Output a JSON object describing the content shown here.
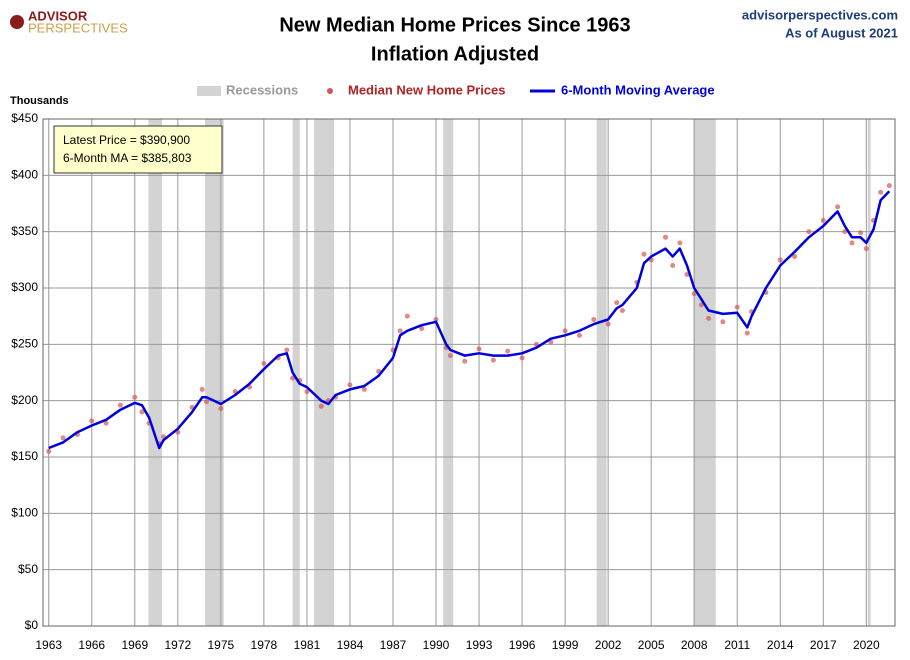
{
  "brand": {
    "line1": "ADVISOR",
    "line2": "PERSPECTIVES",
    "site": "advisorperspectives.com",
    "date": "As of August 2021"
  },
  "chart_data": {
    "type": "scatter-line",
    "title": "New Median Home Prices Since 1963",
    "subtitle": "Inflation Adjusted",
    "y_label": "Thousands",
    "annotations": [
      "Latest Price = $390,900",
      "6-Month MA = $385,803"
    ],
    "recession_name": "Recessions",
    "recession_color": "#d3d3d3",
    "recessions": [
      [
        1969.95,
        1970.9
      ],
      [
        1973.9,
        1975.2
      ],
      [
        1980.0,
        1980.5
      ],
      [
        1981.5,
        1982.9
      ],
      [
        1990.5,
        1991.2
      ],
      [
        2001.2,
        2001.9
      ],
      [
        2007.95,
        2009.5
      ],
      [
        2020.1,
        2020.3
      ]
    ],
    "x": [
      1963,
      1964,
      1965,
      1966,
      1967,
      1968,
      1969,
      1969.5,
      1970,
      1970.7,
      1971,
      1972,
      1973,
      1973.7,
      1974,
      1975,
      1976,
      1977,
      1978,
      1979,
      1979.6,
      1980,
      1980.5,
      1981,
      1982,
      1982.5,
      1983,
      1984,
      1985,
      1986,
      1987,
      1987.5,
      1988,
      1989,
      1990,
      1990.7,
      1991,
      1992,
      1993,
      1994,
      1995,
      1996,
      1997,
      1998,
      1999,
      2000,
      2001,
      2002,
      2002.6,
      2003,
      2004,
      2004.5,
      2005,
      2006,
      2006.5,
      2007,
      2007.5,
      2008,
      2008.5,
      2009,
      2010,
      2011,
      2011.7,
      2012,
      2013,
      2014,
      2015,
      2016,
      2017,
      2018,
      2018.5,
      2019,
      2019.6,
      2020,
      2020.5,
      2021,
      2021.6
    ],
    "series": [
      {
        "name": "Median New Home Prices",
        "color": "#d45555",
        "legend_color": "#b22222",
        "values": [
          155,
          167,
          170,
          182,
          180,
          196,
          203,
          190,
          180,
          162,
          168,
          172,
          194,
          210,
          199,
          193,
          208,
          212,
          233,
          238,
          245,
          220,
          218,
          208,
          195,
          200,
          203,
          214,
          210,
          226,
          245,
          262,
          275,
          264,
          272,
          247,
          240,
          235,
          246,
          236,
          244,
          238,
          250,
          252,
          262,
          258,
          272,
          268,
          287,
          280,
          305,
          330,
          325,
          345,
          320,
          340,
          312,
          295,
          285,
          273,
          270,
          283,
          260,
          279,
          296,
          325,
          328,
          350,
          360,
          372,
          350,
          340,
          349,
          335,
          360,
          385,
          390.9
        ]
      },
      {
        "name": "6-Month Moving Average",
        "color": "#0000dd",
        "legend_color": "#0000dd",
        "values": [
          158,
          163,
          172,
          178,
          183,
          192,
          198,
          196,
          185,
          158,
          165,
          175,
          190,
          203,
          203,
          197,
          205,
          215,
          228,
          240,
          242,
          225,
          215,
          212,
          200,
          197,
          205,
          210,
          213,
          222,
          238,
          258,
          262,
          267,
          270,
          250,
          245,
          240,
          242,
          240,
          240,
          242,
          247,
          255,
          258,
          262,
          268,
          272,
          282,
          285,
          300,
          322,
          328,
          335,
          328,
          335,
          320,
          300,
          290,
          280,
          277,
          278,
          265,
          275,
          300,
          320,
          332,
          345,
          355,
          368,
          355,
          345,
          345,
          340,
          352,
          378,
          385.803
        ]
      }
    ],
    "xlim": [
      1962.6,
      2022.0
    ],
    "xticks": [
      1963,
      1966,
      1969,
      1972,
      1975,
      1978,
      1981,
      1984,
      1987,
      1990,
      1993,
      1996,
      1999,
      2002,
      2005,
      2008,
      2011,
      2014,
      2017,
      2020
    ],
    "ylim": [
      0,
      450
    ],
    "yticks": [
      {
        "value": 0,
        "label": "$0"
      },
      {
        "value": 50,
        "label": "$50"
      },
      {
        "value": 100,
        "label": "$100"
      },
      {
        "value": 150,
        "label": "$150"
      },
      {
        "value": 200,
        "label": "$200"
      },
      {
        "value": 250,
        "label": "$250"
      },
      {
        "value": 300,
        "label": "$300"
      },
      {
        "value": 350,
        "label": "$350"
      },
      {
        "value": 400,
        "label": "$400"
      },
      {
        "value": 450,
        "label": "$450"
      }
    ],
    "grid": true
  }
}
